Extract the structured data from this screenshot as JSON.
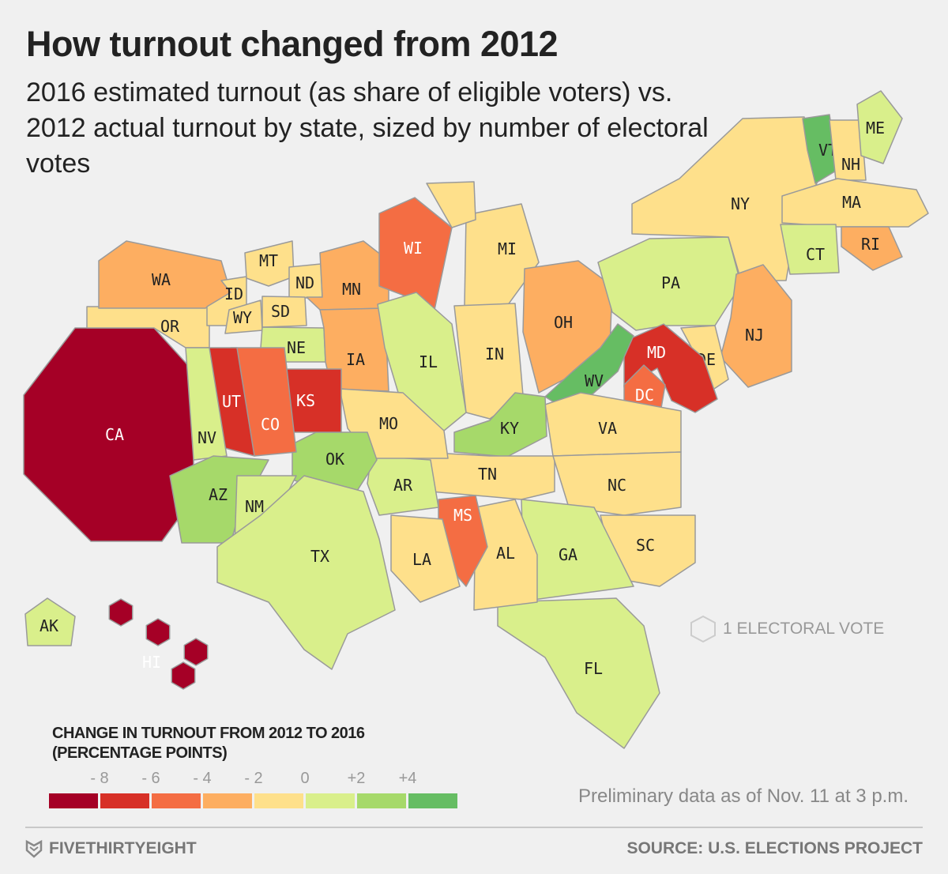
{
  "title": "How turnout changed from 2012",
  "subtitle": "2016 estimated turnout (as share of eligible voters) vs. 2012 actual turnout by state, sized by number of electoral votes",
  "legend": {
    "title_line1": "CHANGE IN TURNOUT FROM 2012 TO 2016",
    "title_line2": "(PERCENTAGE POINTS)",
    "ticks": [
      "- 8",
      "- 6",
      "- 4",
      "- 2",
      "0",
      "+2",
      "+4"
    ],
    "colors": [
      "#a50026",
      "#d73027",
      "#f46d43",
      "#fdae61",
      "#fee08b",
      "#d9ef8b",
      "#a6d96a",
      "#66bd63"
    ]
  },
  "electoral_vote_key": "1 ELECTORAL VOTE",
  "note": "Preliminary data as of Nov. 11 at 3 p.m.",
  "footer": {
    "brand": "FIVETHIRTYEIGHT",
    "source": "SOURCE: U.S. ELECTIONS PROJECT"
  },
  "chart_data": {
    "type": "heatmap",
    "title": "How turnout changed from 2012",
    "value_label": "Change in turnout from 2012 to 2016 (percentage points), approximate bin midpoint",
    "bins": [
      -10,
      -8,
      -6,
      -4,
      -2,
      0,
      2,
      4,
      6
    ],
    "states": [
      {
        "code": "CA",
        "change": -9
      },
      {
        "code": "OR",
        "change": -1
      },
      {
        "code": "WA",
        "change": -3
      },
      {
        "code": "ID",
        "change": -1
      },
      {
        "code": "MT",
        "change": -1
      },
      {
        "code": "WY",
        "change": -1
      },
      {
        "code": "ND",
        "change": -1
      },
      {
        "code": "SD",
        "change": -1
      },
      {
        "code": "MN",
        "change": -3
      },
      {
        "code": "NE",
        "change": 1
      },
      {
        "code": "IA",
        "change": -3
      },
      {
        "code": "WI",
        "change": -5
      },
      {
        "code": "MI",
        "change": -1
      },
      {
        "code": "IL",
        "change": 1
      },
      {
        "code": "IN",
        "change": -1
      },
      {
        "code": "OH",
        "change": -3
      },
      {
        "code": "PA",
        "change": 1
      },
      {
        "code": "NY",
        "change": -1
      },
      {
        "code": "VT",
        "change": 5
      },
      {
        "code": "NH",
        "change": -1
      },
      {
        "code": "ME",
        "change": 1
      },
      {
        "code": "MA",
        "change": -1
      },
      {
        "code": "CT",
        "change": 1
      },
      {
        "code": "RI",
        "change": -3
      },
      {
        "code": "NJ",
        "change": -3
      },
      {
        "code": "DE",
        "change": -1
      },
      {
        "code": "MD",
        "change": -7
      },
      {
        "code": "DC",
        "change": -5
      },
      {
        "code": "WV",
        "change": 5
      },
      {
        "code": "VA",
        "change": -1
      },
      {
        "code": "KY",
        "change": 3
      },
      {
        "code": "TN",
        "change": -1
      },
      {
        "code": "NC",
        "change": -1
      },
      {
        "code": "SC",
        "change": -1
      },
      {
        "code": "GA",
        "change": 1
      },
      {
        "code": "FL",
        "change": 1
      },
      {
        "code": "AL",
        "change": -1
      },
      {
        "code": "MS",
        "change": -5
      },
      {
        "code": "LA",
        "change": -1
      },
      {
        "code": "AR",
        "change": 1
      },
      {
        "code": "MO",
        "change": -1
      },
      {
        "code": "OK",
        "change": 3
      },
      {
        "code": "KS",
        "change": -7
      },
      {
        "code": "CO",
        "change": -5
      },
      {
        "code": "UT",
        "change": -7
      },
      {
        "code": "NV",
        "change": 1
      },
      {
        "code": "AZ",
        "change": 3
      },
      {
        "code": "NM",
        "change": 1
      },
      {
        "code": "TX",
        "change": 1
      },
      {
        "code": "AK",
        "change": 1
      },
      {
        "code": "HI",
        "change": -9
      }
    ]
  }
}
